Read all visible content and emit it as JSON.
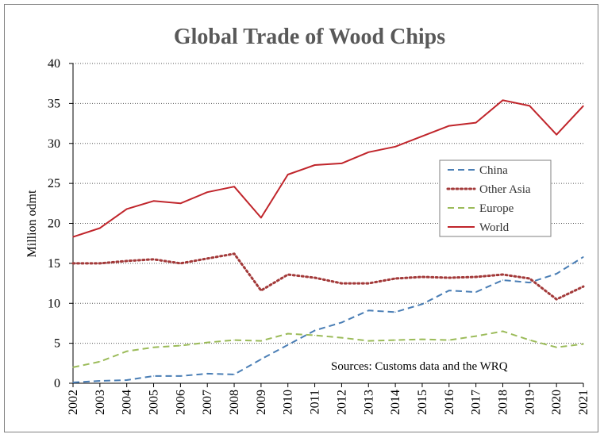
{
  "chart_data": {
    "type": "line",
    "title": "Global Trade of Wood Chips",
    "ylabel": "Million odmt",
    "xlabel": "",
    "ylim": [
      0,
      40
    ],
    "yticks": [
      "0",
      "5",
      "10",
      "15",
      "20",
      "25",
      "30",
      "35",
      "40"
    ],
    "categories": [
      "2002",
      "2003",
      "2004",
      "2005",
      "2006",
      "2007",
      "2008",
      "2009",
      "2010",
      "2011",
      "2012",
      "2013",
      "2014",
      "2015",
      "2016",
      "2017",
      "2018",
      "2019",
      "2020",
      "2021"
    ],
    "grid": "horizontal dotted",
    "legend_position": "right",
    "note": "Sources: Customs data and the WRQ",
    "series": [
      {
        "name": "China",
        "color": "#4a7eb5",
        "style": "dashed",
        "values": [
          0.1,
          0.3,
          0.4,
          0.9,
          0.9,
          1.2,
          1.1,
          3.0,
          4.8,
          6.6,
          7.6,
          9.1,
          8.9,
          9.9,
          11.6,
          11.4,
          12.9,
          12.6,
          13.7,
          15.8
        ]
      },
      {
        "name": "Other Asia",
        "color": "#a33a3a",
        "style": "dotted",
        "values": [
          15.0,
          15.0,
          15.3,
          15.5,
          15.0,
          15.6,
          16.2,
          11.6,
          13.6,
          13.2,
          12.5,
          12.5,
          13.1,
          13.3,
          13.2,
          13.3,
          13.6,
          13.1,
          10.5,
          12.1
        ]
      },
      {
        "name": "Europe",
        "color": "#9bbb59",
        "style": "dashed",
        "values": [
          2.0,
          2.7,
          4.0,
          4.5,
          4.7,
          5.1,
          5.4,
          5.3,
          6.2,
          6.0,
          5.7,
          5.3,
          5.4,
          5.5,
          5.4,
          5.9,
          6.5,
          5.4,
          4.5,
          4.9
        ]
      },
      {
        "name": "World",
        "color": "#c0252b",
        "style": "solid",
        "values": [
          18.3,
          19.4,
          21.8,
          22.8,
          22.5,
          23.9,
          24.6,
          20.7,
          26.1,
          27.3,
          27.5,
          28.9,
          29.6,
          30.9,
          32.2,
          32.6,
          35.4,
          34.7,
          31.1,
          34.7
        ]
      }
    ]
  }
}
